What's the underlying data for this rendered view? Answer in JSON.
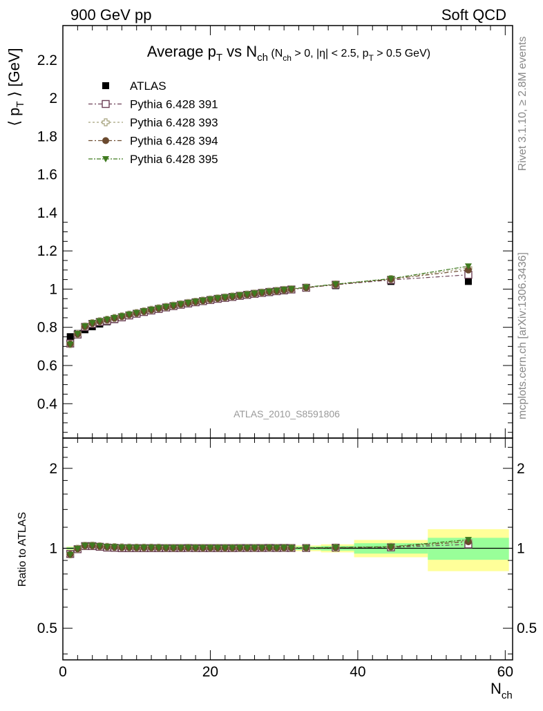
{
  "header": {
    "left": "900 GeV pp",
    "right": "Soft QCD"
  },
  "side_labels": {
    "rivet": "Rivet 3.1.10, ≥ 2.8M events",
    "mcplots": "mcplots.cern.ch [arXiv:1306.3436]"
  },
  "analysis_id": "ATLAS_2010_S8591806",
  "colors": {
    "atlas": "#000000",
    "p391": "#6b3f55",
    "p393": "#a3a07a",
    "p394": "#6b4a2f",
    "p395": "#3f7a1f",
    "band_inner": "#99ff99",
    "band_outer": "#ffff99"
  },
  "chart_data": [
    {
      "type": "scatter",
      "title": {
        "main": "Average p",
        "main_sub": "T",
        "vs": " vs N",
        "vs_sub": "ch",
        "c1": " (N",
        "c1_sub": "ch",
        "c2": " > 0, |η| < 2.5, p",
        "c2_sub": "T",
        "c3": " > 0.5 GeV)"
      },
      "ylabel": {
        "left": "⟨ p",
        "sub": "T",
        "right": " ⟩ [GeV]"
      },
      "xlim": [
        0,
        61
      ],
      "ylim": [
        0.22,
        2.38
      ],
      "yticks": [
        "0.4",
        "0.6",
        "0.8",
        "1",
        "1.2",
        "1.4",
        "1.6",
        "1.8",
        "2",
        "2.2"
      ],
      "legend_position": "top-left",
      "legend": [
        {
          "key": "atlas",
          "label": "ATLAS"
        },
        {
          "key": "p391",
          "label": "Pythia 6.428 391"
        },
        {
          "key": "p393",
          "label": "Pythia 6.428 393"
        },
        {
          "key": "p394",
          "label": "Pythia 6.428 394"
        },
        {
          "key": "p395",
          "label": "Pythia 6.428 395"
        }
      ],
      "x": [
        1,
        2,
        3,
        4,
        5,
        6,
        7,
        8,
        9,
        10,
        11,
        12,
        13,
        14,
        15,
        16,
        17,
        18,
        19,
        20,
        21,
        22,
        23,
        24,
        25,
        26,
        27,
        28,
        29,
        30,
        31,
        33,
        37,
        44.5,
        55
      ],
      "series": [
        {
          "key": "atlas",
          "name": "ATLAS",
          "values": [
            0.751,
            0.768,
            0.787,
            0.803,
            0.817,
            0.829,
            0.84,
            0.851,
            0.861,
            0.87,
            0.879,
            0.887,
            0.895,
            0.903,
            0.91,
            0.917,
            0.923,
            0.93,
            0.936,
            0.942,
            0.948,
            0.953,
            0.958,
            0.963,
            0.968,
            0.973,
            0.978,
            0.982,
            0.987,
            0.991,
            0.996,
            1.005,
            1.018,
            1.04,
            1.04
          ]
        },
        {
          "key": "p391",
          "name": "Pythia 6.428 391",
          "values": [
            0.715,
            0.762,
            0.802,
            0.818,
            0.828,
            0.834,
            0.843,
            0.852,
            0.862,
            0.871,
            0.88,
            0.888,
            0.896,
            0.904,
            0.911,
            0.918,
            0.925,
            0.931,
            0.937,
            0.943,
            0.949,
            0.954,
            0.959,
            0.965,
            0.97,
            0.975,
            0.98,
            0.985,
            0.989,
            0.994,
            0.998,
            1.007,
            1.023,
            1.048,
            1.075
          ]
        },
        {
          "key": "p393",
          "name": "Pythia 6.428 393",
          "values": [
            0.712,
            0.765,
            0.805,
            0.822,
            0.832,
            0.84,
            0.849,
            0.858,
            0.867,
            0.875,
            0.884,
            0.892,
            0.9,
            0.907,
            0.914,
            0.921,
            0.928,
            0.934,
            0.94,
            0.946,
            0.952,
            0.957,
            0.962,
            0.967,
            0.972,
            0.977,
            0.982,
            0.987,
            0.991,
            0.996,
            1.0,
            1.009,
            1.025,
            1.053,
            1.11
          ]
        },
        {
          "key": "p394",
          "name": "Pythia 6.428 394",
          "values": [
            0.713,
            0.764,
            0.804,
            0.821,
            0.831,
            0.839,
            0.848,
            0.857,
            0.866,
            0.874,
            0.883,
            0.891,
            0.899,
            0.906,
            0.913,
            0.92,
            0.927,
            0.933,
            0.939,
            0.945,
            0.951,
            0.956,
            0.961,
            0.966,
            0.971,
            0.976,
            0.981,
            0.986,
            0.99,
            0.995,
            0.999,
            1.008,
            1.024,
            1.052,
            1.1
          ]
        },
        {
          "key": "p395",
          "name": "Pythia 6.428 395",
          "values": [
            0.711,
            0.766,
            0.806,
            0.823,
            0.833,
            0.841,
            0.85,
            0.859,
            0.868,
            0.876,
            0.885,
            0.893,
            0.901,
            0.908,
            0.915,
            0.922,
            0.929,
            0.935,
            0.941,
            0.947,
            0.953,
            0.958,
            0.963,
            0.968,
            0.973,
            0.978,
            0.983,
            0.988,
            0.992,
            0.997,
            1.001,
            1.01,
            1.026,
            1.055,
            1.12
          ]
        }
      ]
    },
    {
      "type": "scatter",
      "ylabel": "Ratio to ATLAS",
      "xlabel": {
        "main": "N",
        "sub": "ch"
      },
      "xlim": [
        0,
        61
      ],
      "ylim": [
        0.38,
        2.6
      ],
      "yscale": "log",
      "yticks_left": [
        "0.5",
        "1",
        "2"
      ],
      "yticks_right": [
        "0.5",
        "1",
        "2"
      ],
      "xticks": [
        "0",
        "20",
        "40",
        "60"
      ],
      "x_tick_values": [
        0,
        20,
        40,
        60
      ],
      "bands": [
        {
          "x0": 0.5,
          "x1": 31.5,
          "inner": [
            0.99,
            1.01
          ],
          "outer": [
            0.985,
            1.015
          ]
        },
        {
          "x0": 31.5,
          "x1": 35,
          "inner": [
            0.985,
            1.015
          ],
          "outer": [
            0.975,
            1.025
          ]
        },
        {
          "x0": 35,
          "x1": 39.5,
          "inner": [
            0.98,
            1.02
          ],
          "outer": [
            0.965,
            1.035
          ]
        },
        {
          "x0": 39.5,
          "x1": 49.5,
          "inner": [
            0.955,
            1.045
          ],
          "outer": [
            0.925,
            1.075
          ]
        },
        {
          "x0": 49.5,
          "x1": 60.5,
          "inner": [
            0.905,
            1.095
          ],
          "outer": [
            0.82,
            1.18
          ]
        }
      ],
      "series": [
        {
          "key": "p391",
          "name": "Pythia 6.428 391",
          "values": [
            0.952,
            0.992,
            1.019,
            1.019,
            1.013,
            1.006,
            1.004,
            1.001,
            1.001,
            1.001,
            1.001,
            1.001,
            1.001,
            1.001,
            1.001,
            1.001,
            1.002,
            1.001,
            1.001,
            1.001,
            1.001,
            1.001,
            1.001,
            1.002,
            1.002,
            1.002,
            1.002,
            1.003,
            1.002,
            1.003,
            1.002,
            1.002,
            1.005,
            1.008,
            1.034
          ]
        },
        {
          "key": "p393",
          "name": "Pythia 6.428 393",
          "values": [
            0.948,
            0.996,
            1.023,
            1.024,
            1.018,
            1.013,
            1.011,
            1.008,
            1.007,
            1.006,
            1.006,
            1.006,
            1.006,
            1.004,
            1.004,
            1.004,
            1.005,
            1.004,
            1.004,
            1.004,
            1.004,
            1.004,
            1.004,
            1.004,
            1.004,
            1.004,
            1.004,
            1.005,
            1.004,
            1.005,
            1.004,
            1.004,
            1.007,
            1.013,
            1.067
          ]
        },
        {
          "key": "p394",
          "name": "Pythia 6.428 394",
          "values": [
            0.949,
            0.995,
            1.022,
            1.022,
            1.017,
            1.012,
            1.01,
            1.007,
            1.006,
            1.005,
            1.005,
            1.005,
            1.005,
            1.003,
            1.003,
            1.003,
            1.004,
            1.003,
            1.003,
            1.003,
            1.003,
            1.003,
            1.003,
            1.003,
            1.003,
            1.003,
            1.003,
            1.004,
            1.003,
            1.004,
            1.003,
            1.003,
            1.006,
            1.012,
            1.058
          ]
        },
        {
          "key": "p395",
          "name": "Pythia 6.428 395",
          "values": [
            0.947,
            0.997,
            1.024,
            1.025,
            1.02,
            1.014,
            1.012,
            1.009,
            1.008,
            1.007,
            1.007,
            1.007,
            1.007,
            1.006,
            1.005,
            1.006,
            1.006,
            1.005,
            1.005,
            1.005,
            1.005,
            1.005,
            1.005,
            1.005,
            1.005,
            1.005,
            1.005,
            1.006,
            1.005,
            1.006,
            1.005,
            1.005,
            1.008,
            1.014,
            1.077
          ]
        }
      ]
    }
  ]
}
